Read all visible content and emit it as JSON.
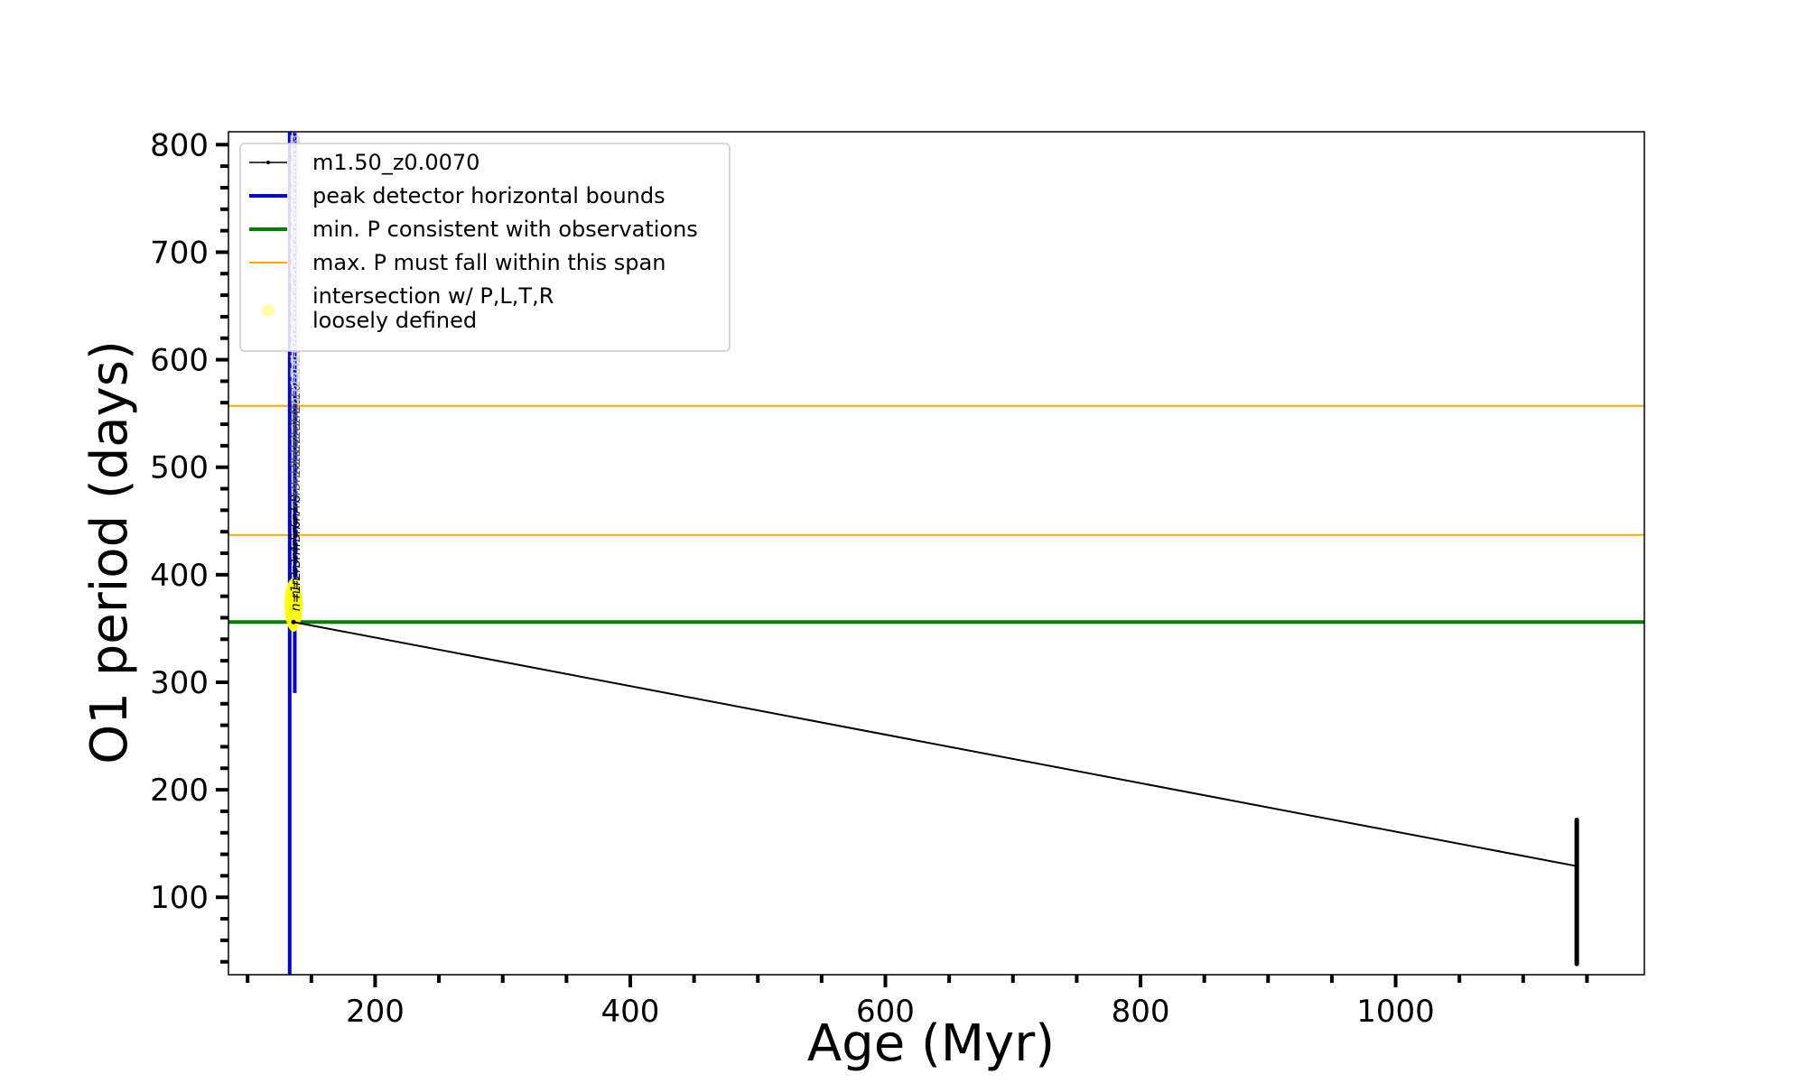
{
  "chart_data": {
    "type": "line",
    "title": "",
    "xlabel": "Age (Myr)",
    "ylabel": "O1 period (days)",
    "xlim": [
      85,
      1195
    ],
    "ylim": [
      28,
      812
    ],
    "x_ticks": [
      200,
      400,
      600,
      800,
      1000
    ],
    "y_ticks": [
      100,
      200,
      300,
      400,
      500,
      600,
      700,
      800
    ],
    "x_minor_step": 50,
    "y_minor_step": 20,
    "grid": false,
    "legend_position": "top-left",
    "legend": [
      {
        "label": "m1.50_z0.0070",
        "style": "black-line-marker"
      },
      {
        "label": "peak detector horizontal bounds",
        "style": "blue-line"
      },
      {
        "label": "min. P consistent with observations",
        "style": "green-line"
      },
      {
        "label": "max. P must fall within this span",
        "style": "orange-line"
      },
      {
        "label": "intersection w/ P,L,T,R\nloosely defined",
        "style": "yellow-dot"
      }
    ],
    "colors": {
      "track": "#000000",
      "peak_bounds": "#0000dd",
      "min_p": "#007f00",
      "max_p_span": "#ffa500",
      "intersection": "#ffff00",
      "annotations": "#c8c8c8"
    },
    "series": [
      {
        "name": "m1.50_z0.0070",
        "x": [
          136,
          1142
        ],
        "y": [
          356,
          129
        ]
      }
    ],
    "track_end_spread": {
      "x": 1142,
      "y_min": 38,
      "y_max": 172
    },
    "peak_detector_bounds": [
      {
        "x": 133,
        "y_min": 28,
        "y_max": 812
      },
      {
        "x": 137,
        "y_min": 290,
        "y_max": 812
      }
    ],
    "min_p": 356,
    "max_p_span": [
      437,
      557
    ],
    "intersection": {
      "x": 136,
      "y_min": 352,
      "y_max": 392
    },
    "mode_labels": [
      "n=1",
      "n=2",
      "n=3",
      "n=4",
      "n=5",
      "n=6",
      "n=7",
      "n=8",
      "n=9",
      "n=10",
      "n=11",
      "n=12",
      "n=13",
      "n=14",
      "n=15",
      "n=16",
      "n=17",
      "n=18",
      "n=19",
      "n=20",
      "n=21",
      "n=22",
      "n=23",
      "n=24",
      "n=25",
      "n=26",
      "n=27",
      "n=28",
      "n=29",
      "n=30",
      "n=31",
      "n=32",
      "n=33",
      "n=34",
      "n=35",
      "n=36"
    ]
  }
}
